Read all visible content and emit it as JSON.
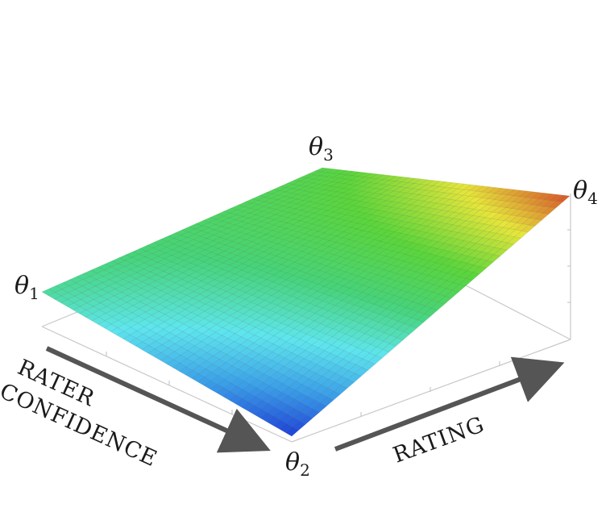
{
  "corners": {
    "theta1": {
      "symbol": "θ",
      "index": "1"
    },
    "theta2": {
      "symbol": "θ",
      "index": "2"
    },
    "theta3": {
      "symbol": "θ",
      "index": "3"
    },
    "theta4": {
      "symbol": "θ",
      "index": "4"
    }
  },
  "axes": {
    "rater_confidence_line1": "RATER",
    "rater_confidence_line2": "CONFIDENCE",
    "rating": "RATING"
  },
  "surface": {
    "grid_divisions": 40,
    "corner_values": {
      "theta1": 0.45,
      "theta2": 0.0,
      "theta3": 0.62,
      "theta4": 1.0
    },
    "colormap": [
      "#1f3fd6",
      "#3a9ee8",
      "#5ee6ee",
      "#46d47a",
      "#5ad63a",
      "#e6e63a",
      "#d6502a"
    ]
  },
  "colors": {
    "arrow": "#555555",
    "box_edge": "#c8c8c8",
    "mesh_line": "rgba(0,0,0,0.10)"
  }
}
